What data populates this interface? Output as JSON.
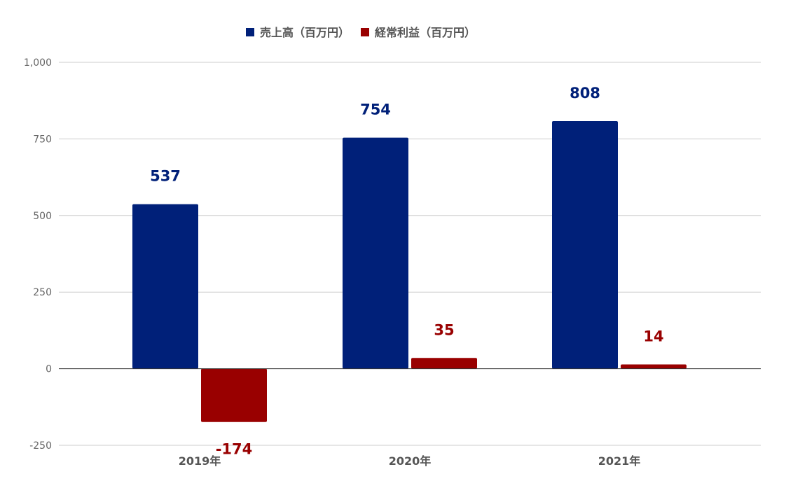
{
  "chart_data": {
    "type": "bar",
    "categories": [
      "2019年",
      "2020年",
      "2021年"
    ],
    "series": [
      {
        "name": "売上高（百万円）",
        "values": [
          537,
          754,
          808
        ],
        "color": "#002079"
      },
      {
        "name": "経常利益（百万円）",
        "values": [
          -174,
          35,
          14
        ],
        "color": "#990000"
      }
    ],
    "data_labels": {
      "series0": [
        "537",
        "754",
        "808"
      ],
      "series1": [
        "-174",
        "35",
        "14"
      ]
    },
    "ylim": [
      -250,
      1000
    ],
    "yticks": [
      -250,
      0,
      250,
      500,
      750,
      1000
    ],
    "ytick_labels": [
      "-250",
      "0",
      "250",
      "500",
      "750",
      "1,000"
    ],
    "legend_position": "top",
    "grid": true,
    "title": "",
    "xlabel": "",
    "ylabel": ""
  }
}
